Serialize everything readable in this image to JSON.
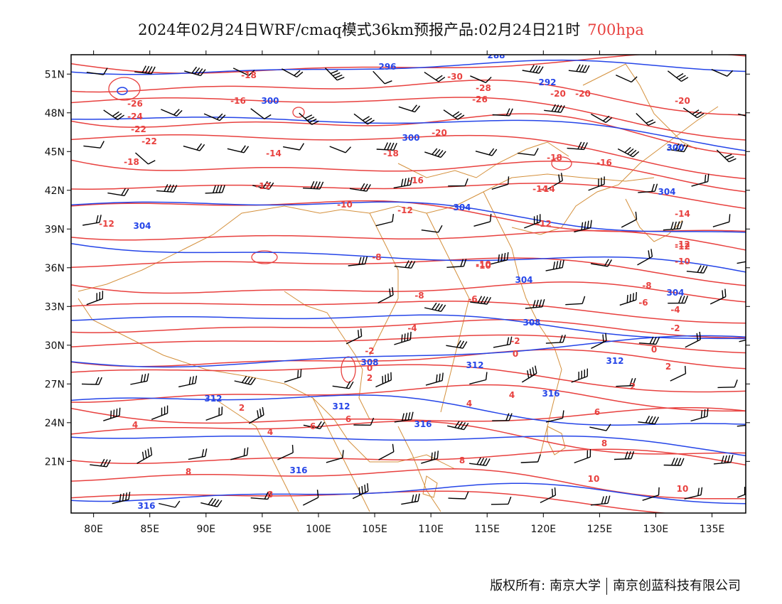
{
  "header": {
    "title": "2024年02月24日WRF/cmaq模式36km预报产品:02月24日21时",
    "level": "700hpa"
  },
  "map": {
    "region": "China and surrounding areas",
    "lon_range": [
      78,
      138
    ],
    "lat_range": [
      17,
      52.5
    ],
    "lon_ticks": [
      "80E",
      "85E",
      "90E",
      "95E",
      "100E",
      "105E",
      "110E",
      "115E",
      "120E",
      "125E",
      "130E",
      "135E"
    ],
    "lat_ticks": [
      "21N",
      "24N",
      "27N",
      "30N",
      "33N",
      "36N",
      "39N",
      "42N",
      "45N",
      "48N",
      "51N"
    ],
    "colors": {
      "temperature": "#e8413f",
      "geopotential_height": "#2545e8",
      "wind_barbs": "#000000",
      "boundaries": "#d4903c",
      "frame": "#000000"
    },
    "temperature_labels": [
      "-30",
      "-28",
      "-26",
      "-26",
      "-24",
      "-22",
      "-22",
      "-20",
      "-20",
      "-20",
      "-20",
      "-18",
      "-18",
      "-18",
      "-18",
      "-16",
      "-16",
      "-16",
      "-14",
      "-14",
      "-14",
      "-12",
      "-12",
      "-12",
      "-12",
      "-12",
      "-10",
      "-10",
      "-10",
      "-8",
      "-8",
      "-8",
      "-6",
      "-6",
      "-4",
      "-4",
      "-2",
      "-2",
      "-2",
      "0",
      "0",
      "0",
      "2",
      "2",
      "2",
      "2",
      "4",
      "4",
      "4",
      "4",
      "6",
      "6",
      "6",
      "8",
      "8",
      "8",
      "8",
      "10",
      "10",
      "-14",
      "-12",
      "-10"
    ],
    "height_labels": [
      "288",
      "296",
      "292",
      "300",
      "300",
      "304",
      "304",
      "300",
      "304",
      "304",
      "308",
      "304",
      "308",
      "312",
      "312",
      "312",
      "316",
      "316",
      "316",
      "316",
      "312"
    ]
  },
  "footer": {
    "copyright_prefix": "版权所有:",
    "org1": "南京大学",
    "org2": "南京创蓝科技有限公司"
  }
}
